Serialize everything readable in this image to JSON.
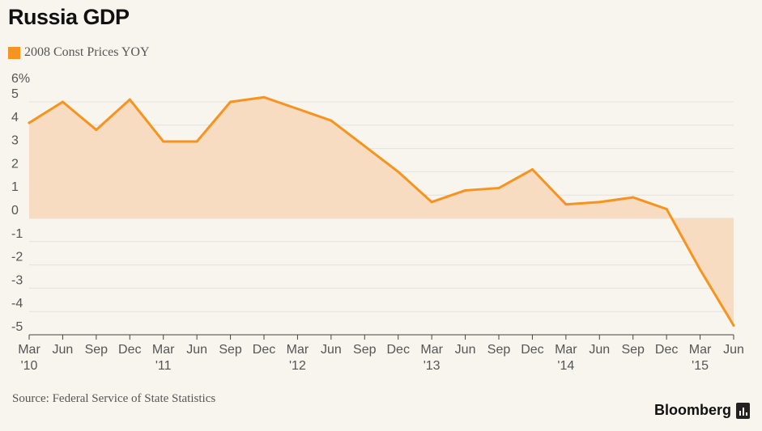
{
  "title": "Russia GDP",
  "legend": {
    "label": "2008 Const Prices YOY",
    "color": "#f7931e"
  },
  "source": "Source: Federal Service of State Statistics",
  "brand": "Bloomberg",
  "colors": {
    "line": "#f7931e",
    "fill": "#f8dcc1",
    "grid": "#e4e2dc",
    "background": "#f7f5ee"
  },
  "chart_data": {
    "type": "area",
    "title": "Russia GDP",
    "xlabel": "",
    "ylabel": "",
    "ylim": [
      -5,
      6
    ],
    "grid": true,
    "legend_position": "top-left",
    "y_ticks": [
      "6%",
      "5",
      "4",
      "3",
      "2",
      "1",
      "0",
      "-1",
      "-2",
      "-3",
      "-4",
      "-5"
    ],
    "x_tick_labels": [
      [
        "Mar",
        "'10"
      ],
      [
        "Jun",
        ""
      ],
      [
        "Sep",
        ""
      ],
      [
        "Dec",
        ""
      ],
      [
        "Mar",
        "'11"
      ],
      [
        "Jun",
        ""
      ],
      [
        "Sep",
        ""
      ],
      [
        "Dec",
        ""
      ],
      [
        "Mar",
        "'12"
      ],
      [
        "Jun",
        ""
      ],
      [
        "Sep",
        ""
      ],
      [
        "Dec",
        ""
      ],
      [
        "Mar",
        "'13"
      ],
      [
        "Jun",
        ""
      ],
      [
        "Sep",
        ""
      ],
      [
        "Dec",
        ""
      ],
      [
        "Mar",
        "'14"
      ],
      [
        "Jun",
        ""
      ],
      [
        "Sep",
        ""
      ],
      [
        "Dec",
        ""
      ],
      [
        "Mar",
        "'15"
      ],
      [
        "Jun",
        ""
      ]
    ],
    "series": [
      {
        "name": "2008 Const Prices YOY",
        "x": [
          "Mar 2010",
          "Jun 2010",
          "Sep 2010",
          "Dec 2010",
          "Mar 2011",
          "Jun 2011",
          "Sep 2011",
          "Dec 2011",
          "Mar 2012",
          "Jun 2012",
          "Sep 2012",
          "Dec 2012",
          "Mar 2013",
          "Jun 2013",
          "Sep 2013",
          "Dec 2013",
          "Mar 2014",
          "Jun 2014",
          "Sep 2014",
          "Dec 2014",
          "Mar 2015",
          "Jun 2015"
        ],
        "values": [
          4.1,
          5.0,
          3.8,
          5.1,
          3.3,
          3.3,
          5.0,
          5.2,
          4.7,
          4.2,
          3.1,
          2.0,
          0.7,
          1.2,
          1.3,
          2.1,
          0.6,
          0.7,
          0.9,
          0.4,
          -2.2,
          -4.6
        ]
      }
    ]
  }
}
